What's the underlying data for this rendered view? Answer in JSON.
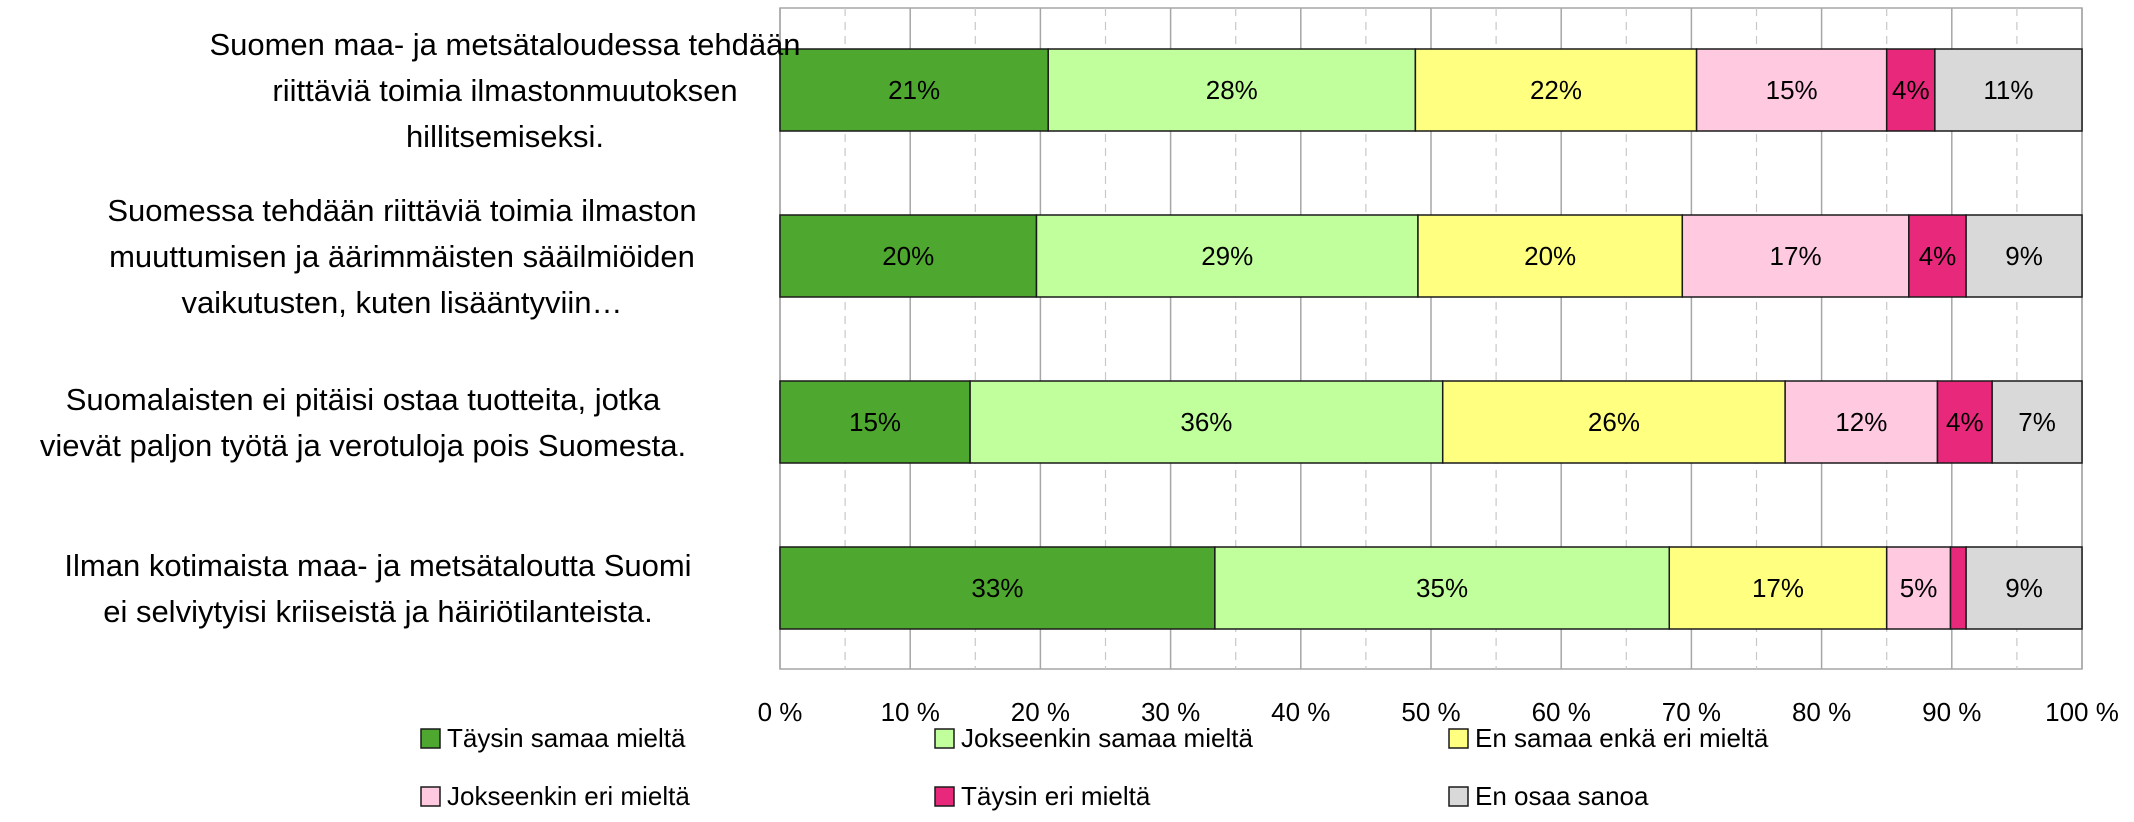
{
  "chart_data": {
    "type": "bar",
    "orientation": "horizontal",
    "stacked": true,
    "categories": [
      [
        "Suomen maa- ja metsätaloudessa tehdään",
        "riittäviä toimia ilmastonmuutoksen",
        "hillitsemiseksi."
      ],
      [
        "Suomessa tehdään riittäviä toimia ilmaston",
        "muuttumisen ja äärimmäisten sääilmiöiden",
        "vaikutusten, kuten lisääntyviin…"
      ],
      [
        "Suomalaisten ei pitäisi ostaa tuotteita, jotka",
        "vievät paljon työtä ja verotuloja pois Suomesta."
      ],
      [
        "Ilman kotimaista maa- ja metsätaloutta Suomi",
        "ei selviytyisi kriiseistä ja häiriötilanteista."
      ]
    ],
    "series": [
      {
        "name": "Täysin samaa mieltä",
        "color": "#4ea72e",
        "values": [
          20.6,
          19.7,
          14.6,
          33.4
        ],
        "labels": [
          "21%",
          "20%",
          "15%",
          "33%"
        ]
      },
      {
        "name": "Jokseenkin samaa mieltä",
        "color": "#c1ff9d",
        "values": [
          28.2,
          29.3,
          36.3,
          34.9
        ],
        "labels": [
          "28%",
          "29%",
          "36%",
          "35%"
        ]
      },
      {
        "name": "En samaa enkä eri mieltä",
        "color": "#ffff80",
        "values": [
          21.6,
          20.3,
          26.3,
          16.7
        ],
        "labels": [
          "22%",
          "20%",
          "26%",
          "17%"
        ]
      },
      {
        "name": "Jokseenkin eri mieltä",
        "color": "#ffc9e0",
        "values": [
          14.6,
          17.4,
          11.7,
          4.9
        ],
        "labels": [
          "15%",
          "17%",
          "12%",
          "5%"
        ]
      },
      {
        "name": "Täysin eri mieltä",
        "color": "#e8287a",
        "values": [
          3.7,
          4.4,
          4.2,
          1.2
        ],
        "labels": [
          "4%",
          "4%",
          "4%",
          ""
        ]
      },
      {
        "name": "En osaa sanoa",
        "color": "#d9d9d9",
        "values": [
          11.3,
          8.9,
          6.9,
          8.9
        ],
        "labels": [
          "11%",
          "9%",
          "7%",
          "9%"
        ]
      }
    ],
    "xlim": [
      0,
      100
    ],
    "xticks": [
      "0 %",
      "10 %",
      "20 %",
      "30 %",
      "40 %",
      "50 %",
      "60 %",
      "70 %",
      "80 %",
      "90 %",
      "100 %"
    ],
    "grid": true,
    "legend_position": "bottom"
  }
}
